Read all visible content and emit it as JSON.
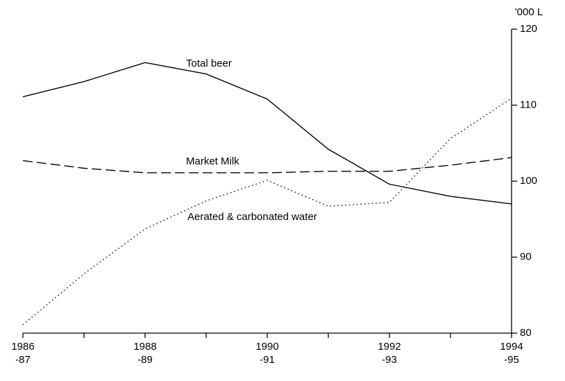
{
  "chart_data": {
    "type": "line",
    "y_axis_label": "'000 L",
    "categories": [
      "1986\n-87",
      null,
      "1988\n-89",
      null,
      "1990\n-91",
      null,
      "1992\n-93",
      null,
      "1994\n-95"
    ],
    "series": [
      {
        "name": "Total beer",
        "color": "#000000",
        "style": "solid",
        "values": [
          111.1,
          113.1,
          115.6,
          114.1,
          110.8,
          104.2,
          99.6,
          98.0,
          97.0
        ]
      },
      {
        "name": "Market Milk",
        "color": "#000000",
        "style": "dashed",
        "values": [
          102.7,
          101.7,
          101.1,
          101.1,
          101.1,
          101.3,
          101.3,
          102.1,
          103.1
        ]
      },
      {
        "name": "Aerated & carbonated water",
        "color": "#000000",
        "style": "dotted",
        "values": [
          81.1,
          87.8,
          93.7,
          97.4,
          100.1,
          96.7,
          97.2,
          105.6,
          110.9
        ]
      }
    ],
    "ylim": [
      80,
      120
    ],
    "yticks": [
      80,
      90,
      100,
      110,
      120
    ],
    "y_axis_side": "right",
    "grid": false
  }
}
